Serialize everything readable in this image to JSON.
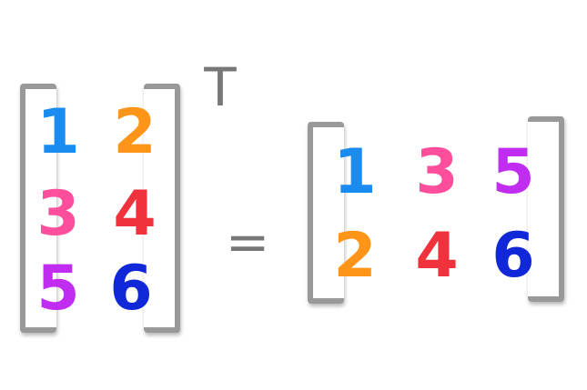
{
  "matrix_a": {
    "rows": [
      [
        {
          "text": "1",
          "color": "#1a8cf0"
        },
        {
          "text": "2",
          "color": "#ff9518"
        }
      ],
      [
        {
          "text": "3",
          "color": "#ff4f9c"
        },
        {
          "text": "4",
          "color": "#f0323c"
        }
      ],
      [
        {
          "text": "5",
          "color": "#c02cf0"
        },
        {
          "text": "6",
          "color": "#1028d8"
        }
      ]
    ]
  },
  "transpose_symbol": "T",
  "equals_symbol": "=",
  "matrix_b": {
    "rows": [
      [
        {
          "text": "1",
          "color": "#1a8cf0"
        },
        {
          "text": "3",
          "color": "#ff4f9c"
        },
        {
          "text": "5",
          "color": "#c02cf0"
        }
      ],
      [
        {
          "text": "2",
          "color": "#ff9518"
        },
        {
          "text": "4",
          "color": "#f0323c"
        },
        {
          "text": "6",
          "color": "#1028d8"
        }
      ]
    ]
  },
  "bracket_color": "#999999"
}
